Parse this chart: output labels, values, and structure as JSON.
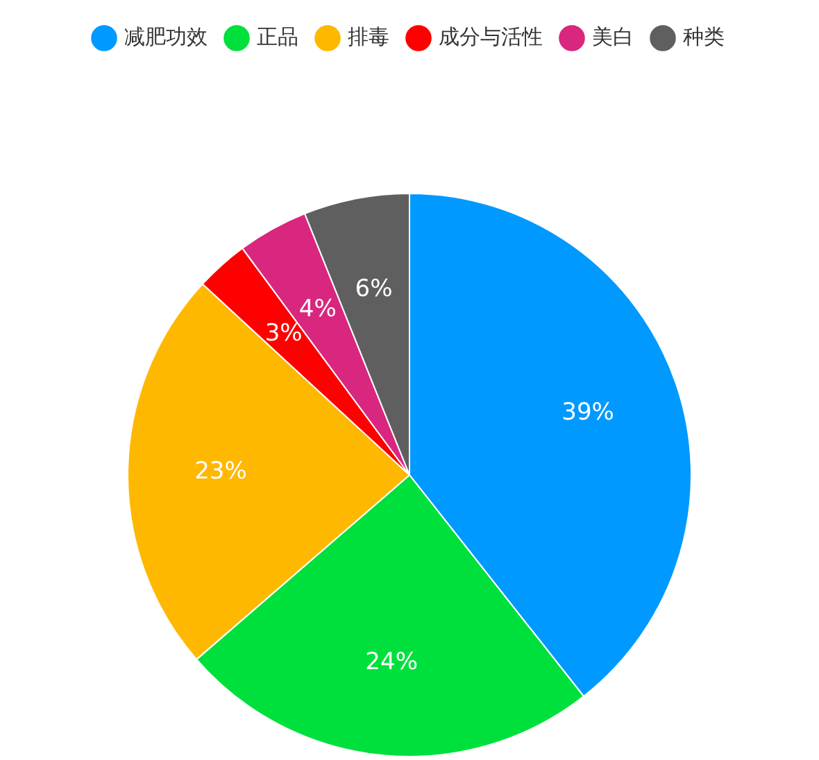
{
  "chart_data": {
    "type": "pie",
    "categories": [
      "减肥功效",
      "正品",
      "排毒",
      "成分与活性",
      "美白",
      "种类"
    ],
    "values": [
      39,
      24,
      23,
      3,
      4,
      6
    ],
    "value_labels": [
      "39%",
      "24%",
      "23%",
      "3%",
      "4%",
      "6%"
    ],
    "colors": [
      "#0099ff",
      "#00e03c",
      "#ffb800",
      "#ff0000",
      "#d9267f",
      "#5f5f5f"
    ],
    "legend": "top"
  }
}
